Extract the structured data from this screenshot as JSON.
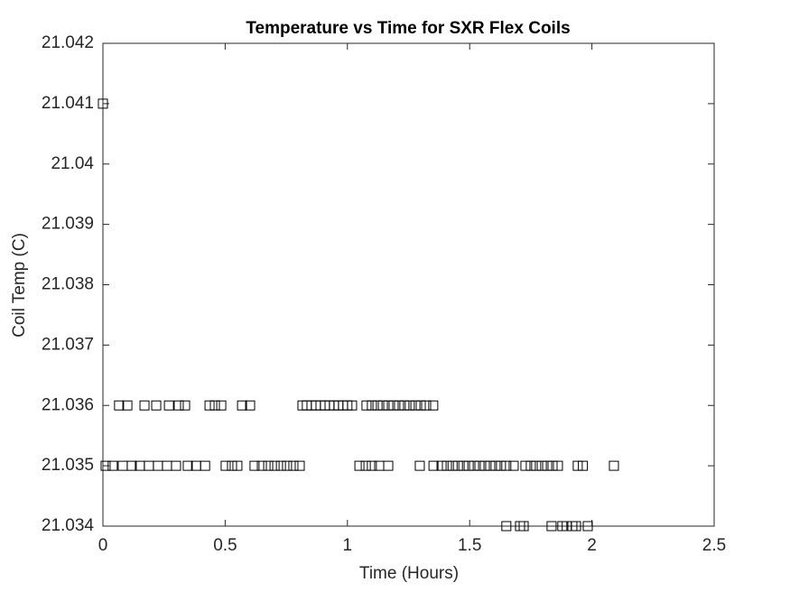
{
  "chart_data": {
    "type": "scatter",
    "title": "Temperature vs Time for SXR Flex Coils",
    "x_label": "Time (Hours)",
    "y_label": "Coil Temp (C)",
    "xlim": [
      0,
      2.5
    ],
    "xticks": [
      0,
      0.5,
      1,
      1.5,
      2,
      2.5
    ],
    "ylim": [
      21.034,
      21.042
    ],
    "yticks": [
      21.034,
      21.035,
      21.036,
      21.037,
      21.038,
      21.039,
      21.04,
      21.041,
      21.042
    ],
    "marker": "square",
    "color": "#000000",
    "x": [
      0,
      0.066,
      0.1,
      0.17,
      0.218,
      0.27,
      0.31,
      0.336,
      0.436,
      0.458,
      0.484,
      0.569,
      0.602,
      0.816,
      0.834,
      0.853,
      0.871,
      0.89,
      0.908,
      0.927,
      0.945,
      0.963,
      0.982,
      1.0,
      1.019,
      1.078,
      1.1,
      1.123,
      1.145,
      1.167,
      1.189,
      1.211,
      1.233,
      1.255,
      1.278,
      1.3,
      1.322,
      1.351,
      0.011,
      0.04,
      0.081,
      0.118,
      0.151,
      0.188,
      0.225,
      0.262,
      0.299,
      0.347,
      0.381,
      0.418,
      0.502,
      0.528,
      0.55,
      0.62,
      0.65,
      0.676,
      0.702,
      0.728,
      0.753,
      0.779,
      0.805,
      1.049,
      1.075,
      1.1,
      1.13,
      1.167,
      1.296,
      1.352,
      1.385,
      1.407,
      1.43,
      1.452,
      1.474,
      1.496,
      1.518,
      1.54,
      1.562,
      1.584,
      1.606,
      1.628,
      1.65,
      1.68,
      1.728,
      1.75,
      1.772,
      1.795,
      1.817,
      1.839,
      1.861,
      1.942,
      1.963,
      2.09,
      1.65,
      1.706,
      1.721,
      1.835,
      1.879,
      1.897,
      1.92,
      1.935,
      1.983
    ],
    "y": [
      21.041,
      21.036,
      21.036,
      21.036,
      21.036,
      21.036,
      21.036,
      21.036,
      21.036,
      21.036,
      21.036,
      21.036,
      21.036,
      21.036,
      21.036,
      21.036,
      21.036,
      21.036,
      21.036,
      21.036,
      21.036,
      21.036,
      21.036,
      21.036,
      21.036,
      21.036,
      21.036,
      21.036,
      21.036,
      21.036,
      21.036,
      21.036,
      21.036,
      21.036,
      21.036,
      21.036,
      21.036,
      21.036,
      21.035,
      21.035,
      21.035,
      21.035,
      21.035,
      21.035,
      21.035,
      21.035,
      21.035,
      21.035,
      21.035,
      21.035,
      21.035,
      21.035,
      21.035,
      21.035,
      21.035,
      21.035,
      21.035,
      21.035,
      21.035,
      21.035,
      21.035,
      21.035,
      21.035,
      21.035,
      21.035,
      21.035,
      21.035,
      21.035,
      21.035,
      21.035,
      21.035,
      21.035,
      21.035,
      21.035,
      21.035,
      21.035,
      21.035,
      21.035,
      21.035,
      21.035,
      21.035,
      21.035,
      21.035,
      21.035,
      21.035,
      21.035,
      21.035,
      21.035,
      21.035,
      21.035,
      21.035,
      21.035,
      21.034,
      21.034,
      21.034,
      21.034,
      21.034,
      21.034,
      21.034,
      21.034,
      21.034
    ]
  }
}
